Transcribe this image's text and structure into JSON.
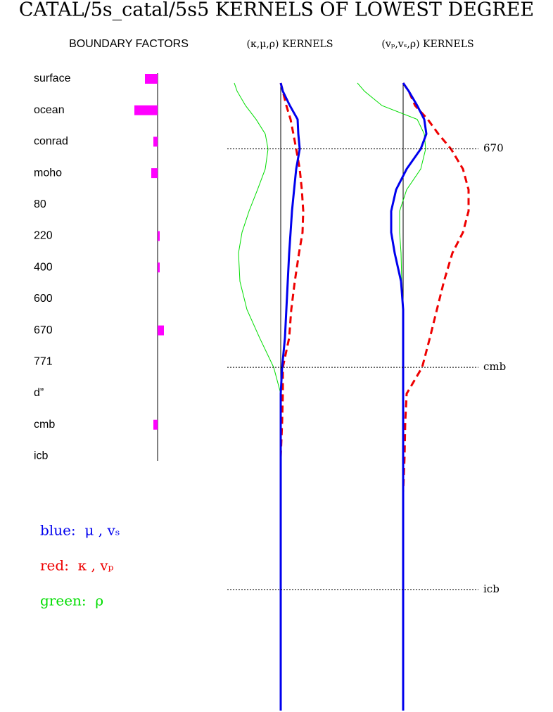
{
  "title": "CATAL/5s_catal/5s5 KERNELS OF LOWEST DEGREE",
  "chart_data": [
    {
      "type": "hbar",
      "title": "BOUNDARY FACTORS",
      "categories": [
        "surface",
        "ocean",
        "conrad",
        "moho",
        "80",
        "220",
        "400",
        "600",
        "670",
        "771",
        "d”",
        "cmb",
        "icb"
      ],
      "values": [
        -18,
        -33,
        -6,
        -9,
        0,
        3,
        3,
        0,
        9,
        0,
        0,
        -6,
        0
      ],
      "color": "#ff00ff",
      "xlim": [
        -40,
        10
      ]
    },
    {
      "type": "kernel",
      "title": "(κ,μ,ρ) KERNELS",
      "x": [
        0,
        0.013,
        0.036,
        0.058,
        0.081,
        0.105,
        0.137,
        0.17,
        0.204,
        0.238,
        0.271,
        0.316,
        0.361,
        0.406,
        0.453,
        0.495,
        0.54,
        0.596,
        0.652,
        0.709,
        0.765,
        0.821,
        0.877,
        0.933,
        1
      ],
      "xlim": [
        0,
        1
      ],
      "ylim": [
        -100,
        100
      ],
      "series": [
        {
          "name": "green:  ρ",
          "color": "#00dd00",
          "values": [
            -66,
            -62,
            -50,
            -35,
            -22,
            -18,
            -22,
            -33,
            -45,
            -55,
            -60,
            -58,
            -48,
            -30,
            -10,
            0,
            0,
            0,
            0,
            0,
            0,
            0,
            0,
            0,
            0
          ]
        },
        {
          "name": "red:  κ , vₚ",
          "color": "#ee0000",
          "values": [
            0,
            3,
            8,
            14,
            18,
            22,
            27,
            30,
            32,
            31,
            26,
            20,
            15,
            12,
            3,
            3,
            2,
            0,
            0,
            0,
            null,
            null,
            null,
            null,
            null
          ]
        },
        {
          "name": "blue:  μ , vₛ",
          "color": "#0000ee",
          "values": [
            0,
            3,
            13,
            24,
            25,
            27,
            22,
            19,
            16,
            14,
            12,
            10,
            8,
            6,
            2,
            0,
            0,
            0,
            0,
            0,
            0,
            0,
            0,
            0,
            0
          ]
        }
      ]
    },
    {
      "type": "kernel",
      "title": "(vₚ,vₛ,ρ) KERNELS",
      "x": [
        0,
        0.013,
        0.036,
        0.058,
        0.081,
        0.105,
        0.137,
        0.17,
        0.204,
        0.238,
        0.271,
        0.316,
        0.361,
        0.406,
        0.453,
        0.495,
        0.54,
        0.596,
        0.652,
        0.709,
        0.765,
        0.821,
        0.877,
        0.933,
        1
      ],
      "xlim": [
        0,
        1
      ],
      "ylim": [
        -100,
        100
      ],
      "series": [
        {
          "name": "green:  ρ",
          "color": "#00dd00",
          "values": [
            -65,
            -55,
            -30,
            20,
            30,
            32,
            25,
            5,
            -5,
            -5,
            -3,
            -2,
            0,
            0,
            0,
            0,
            0,
            0,
            0,
            0,
            0,
            0,
            0,
            0,
            0
          ]
        },
        {
          "name": "red:  κ , vₚ",
          "color": "#ee0000",
          "values": [
            0,
            8,
            17,
            35,
            50,
            68,
            85,
            93,
            93,
            85,
            70,
            58,
            48,
            38,
            27,
            5,
            3,
            2,
            0,
            null,
            null,
            null,
            null,
            null,
            null
          ]
        },
        {
          "name": "blue:  μ , vₛ",
          "color": "#0000ee",
          "values": [
            0,
            8,
            20,
            30,
            33,
            25,
            5,
            -10,
            -17,
            -17,
            -12,
            -3,
            0,
            0,
            0,
            0,
            0,
            0,
            0,
            0,
            0,
            0,
            0,
            0,
            0
          ]
        }
      ]
    }
  ],
  "depth_lines": [
    {
      "label": "670",
      "depth": 0.105
    },
    {
      "label": "cmb",
      "depth": 0.453
    },
    {
      "label": "icb",
      "depth": 0.807
    }
  ]
}
